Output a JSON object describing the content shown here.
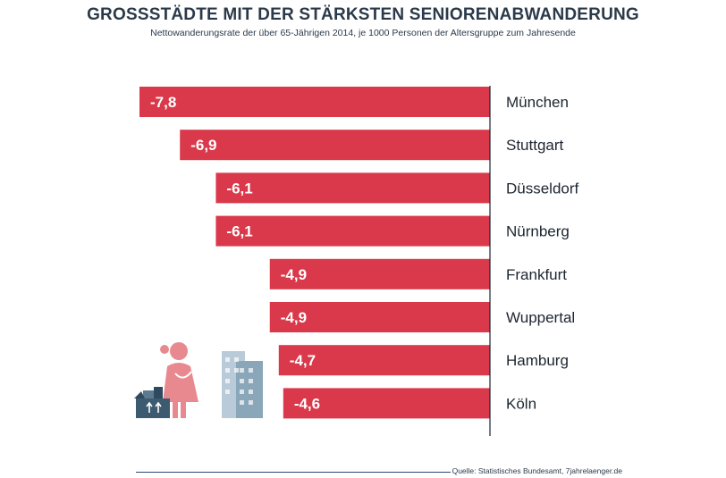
{
  "title": "GROSSSTÄDTE MIT DER STÄRKSTEN SENIORENABWANDERUNG",
  "subtitle": "Nettowanderungsrate der über 65-Jährigen 2014, je 1000 Personen der Altersgruppe zum Jahresende",
  "source": "Quelle: Statistisches Bundesamt, 7jahrelaenger.de",
  "colors": {
    "bar": "#d9394a",
    "text": "#2b3a4a"
  },
  "chart_data": {
    "type": "bar",
    "orientation": "horizontal",
    "title": "GROSSSTÄDTE MIT DER STÄRKSTEN SENIORENABWANDERUNG",
    "subtitle": "Nettowanderungsrate der über 65-Jährigen 2014, je 1000 Personen der Altersgruppe zum Jahresende",
    "categories": [
      "München",
      "Stuttgart",
      "Düsseldorf",
      "Nürnberg",
      "Frankfurt",
      "Wuppertal",
      "Hamburg",
      "Köln"
    ],
    "values": [
      -7.8,
      -6.9,
      -6.1,
      -6.1,
      -4.9,
      -4.9,
      -4.7,
      -4.6
    ],
    "value_labels": [
      "-7,8",
      "-6,9",
      "-6,1",
      "-6,1",
      "-4,9",
      "-4,9",
      "-4,7",
      "-4,6"
    ],
    "xlim": [
      -8.5,
      0
    ],
    "xlabel": "",
    "ylabel": "",
    "grid": false,
    "legend": "none"
  }
}
